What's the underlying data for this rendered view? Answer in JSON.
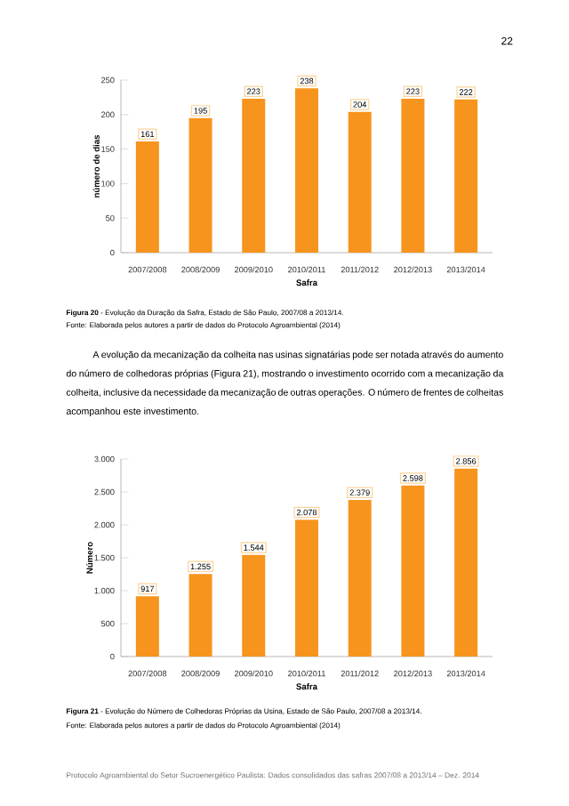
{
  "chart_data": [
    {
      "type": "bar",
      "xlabel": "Safra",
      "ylabel": "número de dias",
      "categories": [
        "2007/2008",
        "2008/2009",
        "2009/2010",
        "2010/2011",
        "2011/2012",
        "2012/2013",
        "2013/2014"
      ],
      "values": [
        161,
        195,
        223,
        238,
        204,
        223,
        222
      ],
      "color": "#f7941d",
      "data_labels": true,
      "ylim": [
        0,
        250
      ],
      "yticks": [
        0,
        50,
        100,
        150,
        200,
        250
      ],
      "annotations": [
        "22",
        "**Figura 20** - Evolução da Duração da Safra, Estado de São Paulo, 2007/08 a 2013/14.",
        "Fonte: Elaborada pelos autores a partir de dados do Protocolo Agroambiental (2014)"
      ]
    },
    {
      "type": "bar",
      "xlabel": "Safra",
      "ylabel": "Número",
      "categories": [
        "2007/2008",
        "2008/2009",
        "2009/2010",
        "2010/2011",
        "2011/2012",
        "2012/2013",
        "2013/2014"
      ],
      "values": [
        917,
        1255,
        1544,
        2078,
        2379,
        2598,
        2856
      ],
      "color": "#f7941d",
      "value_labels": [
        "917",
        "1.255",
        "1.544",
        "2.078",
        "2.379",
        "2.598",
        "2.856"
      ],
      "ylim": [
        0,
        3000
      ],
      "yticks": [
        {
          "value": 0,
          "label": "0"
        },
        {
          "value": 500,
          "label": "500"
        },
        {
          "value": 1000,
          "label": "1.000"
        },
        {
          "value": 1500,
          "label": "1.500"
        },
        {
          "value": 2000,
          "label": "2.000"
        },
        {
          "value": 2500,
          "label": "2.500"
        },
        {
          "value": 3000,
          "label": "3.000"
        }
      ],
      "annotations": [
        "A evolução da mecanização da colheita nas usinas signatárias pode ser notada através do aumento do número de colhedoras próprias (Figura 21), mostrando o investimento ocorrido com a mecanização da colheita, inclusive da necessidade da mecanização de outras operações. O número de frentes de colheitas acompanhou este investimento.",
        "**Figura 21** - Evolução do Número de Colhedoras Próprias da Usina, Estado de São Paulo, 2007/08 a 2013/14.",
        "Fonte: Elaborada pelos autores a partir de dados do Protocolo Agroambiental (2014)",
        "Protocolo Agroambiental do Setor Sucroenergético Paulista: Dados consolidados das safras 2007/08 a 2013/14 – Dez. 2014"
      ]
    }
  ]
}
